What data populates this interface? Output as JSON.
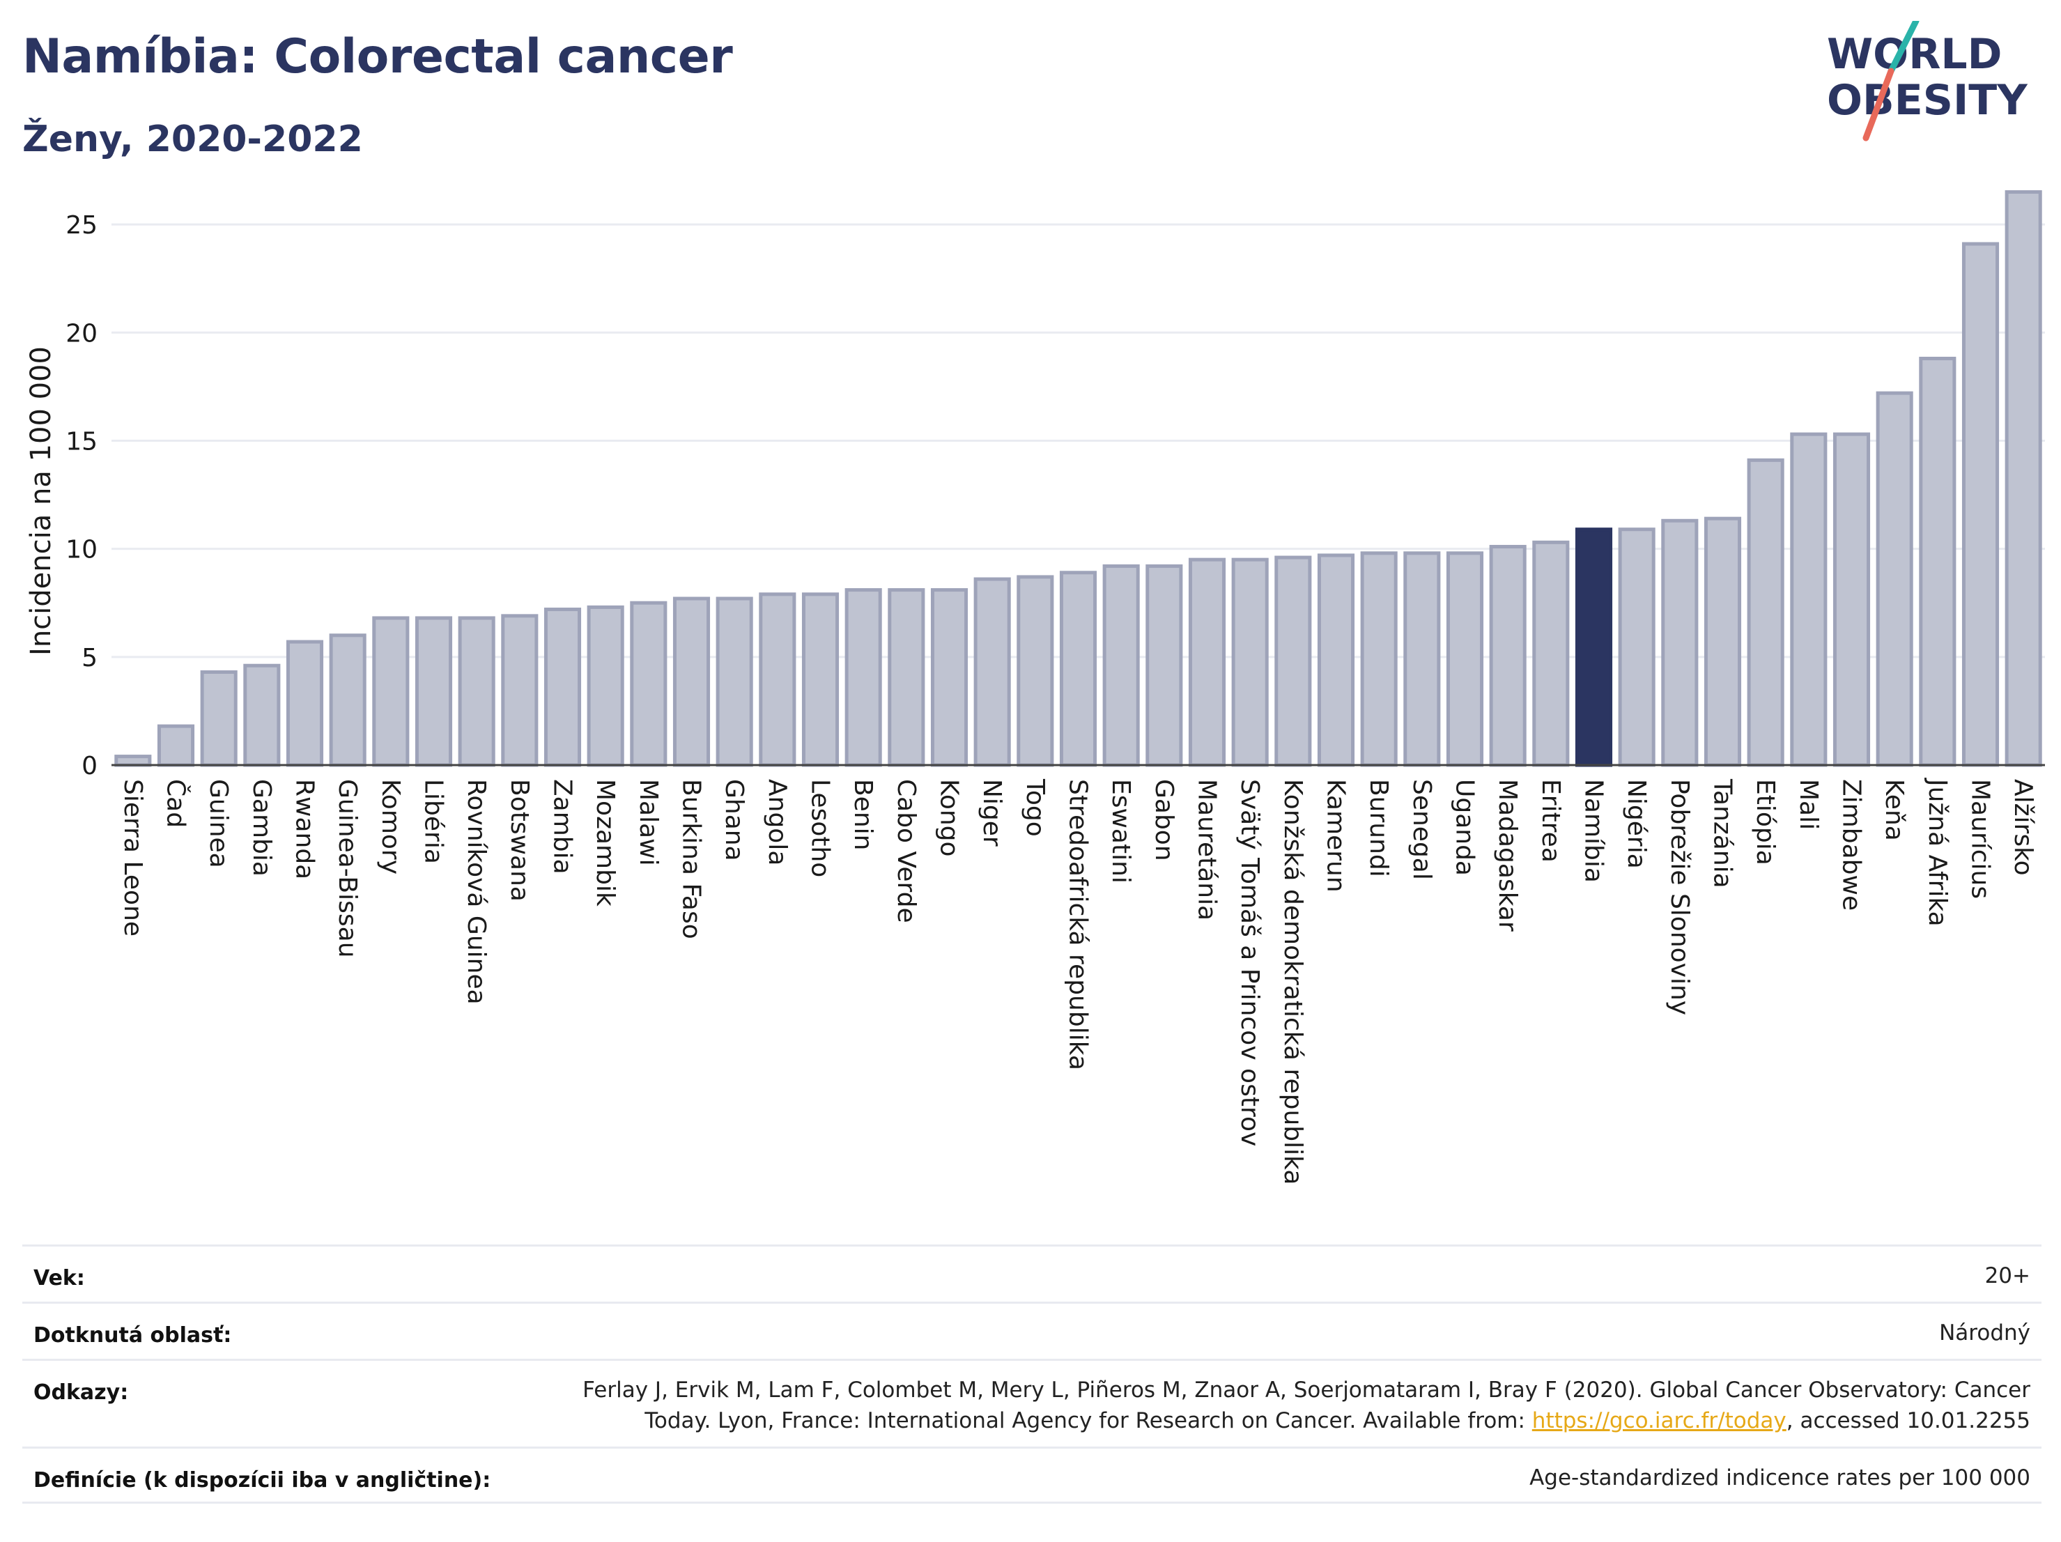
{
  "header": {
    "title": "Namíbia: Colorectal cancer",
    "subtitle": "Ženy, 2020-2022"
  },
  "logo": {
    "line1": "WORLD",
    "line2": "OBESITY",
    "colors": {
      "text": "#2b3561",
      "slash_teal": "#2ab3a9",
      "slash_red": "#e8695a"
    }
  },
  "colors": {
    "bar_fill": "#bfc3d1",
    "bar_stroke": "#9ea3b9",
    "highlight": "#2b3561",
    "grid": "#e9ebf1"
  },
  "chart_data": {
    "type": "bar",
    "title": "Namíbia: Colorectal cancer",
    "subtitle": "Ženy, 2020-2022",
    "ylabel": "Incidencia na 100 000",
    "xlabel": "",
    "ylim": [
      0,
      27
    ],
    "yticks": [
      0,
      5,
      10,
      15,
      20,
      25
    ],
    "grid": true,
    "highlight": "Namíbia",
    "categories": [
      "Sierra Leone",
      "Čad",
      "Guinea",
      "Gambia",
      "Rwanda",
      "Guinea-Bissau",
      "Komory",
      "Libéria",
      "Rovníková Guinea",
      "Botswana",
      "Zambia",
      "Mozambik",
      "Malawi",
      "Burkina Faso",
      "Ghana",
      "Angola",
      "Lesotho",
      "Benin",
      "Cabo Verde",
      "Kongo",
      "Niger",
      "Togo",
      "Stredoafrická republika",
      "Eswatini",
      "Gabon",
      "Mauretánia",
      "Svätý Tomáš a Princov ostrov",
      "Konžská demokratická republika",
      "Kamerun",
      "Burundi",
      "Senegal",
      "Uganda",
      "Madagaskar",
      "Eritrea",
      "Namíbia",
      "Nigéria",
      "Pobrežie Slonoviny",
      "Tanzánia",
      "Etiópia",
      "Mali",
      "Zimbabwe",
      "Keňa",
      "Južná Afrika",
      "Maurícius",
      "Alžírsko"
    ],
    "values": [
      0.4,
      1.8,
      4.3,
      4.6,
      5.7,
      6.0,
      6.8,
      6.8,
      6.8,
      6.9,
      7.2,
      7.3,
      7.5,
      7.7,
      7.7,
      7.9,
      7.9,
      8.1,
      8.1,
      8.1,
      8.6,
      8.7,
      8.9,
      9.2,
      9.2,
      9.5,
      9.5,
      9.6,
      9.7,
      9.8,
      9.8,
      9.8,
      10.1,
      10.3,
      10.9,
      10.9,
      11.3,
      11.4,
      14.1,
      15.3,
      15.3,
      17.2,
      18.8,
      24.1,
      26.5
    ]
  },
  "info": {
    "rows": [
      {
        "label": "Vek:",
        "value": "20+"
      },
      {
        "label": "Dotknutá oblasť:",
        "value": "Národný"
      },
      {
        "label": "Odkazy:",
        "value_line1": "Ferlay J, Ervik M, Lam F, Colombet M, Mery L, Piñeros M, Znaor A, Soerjomataram I, Bray F (2020). Global Cancer Observatory: Cancer",
        "value_line2_pre": "Today. Lyon, France: International Agency for Research on Cancer. Available from: ",
        "value_link": "https://gco.iarc.fr/today",
        "value_line2_post": ", accessed 10.01.2255"
      },
      {
        "label": "Definície (k dispozícii iba v angličtine):",
        "value": "Age-standardized indicence rates per 100 000"
      }
    ]
  }
}
